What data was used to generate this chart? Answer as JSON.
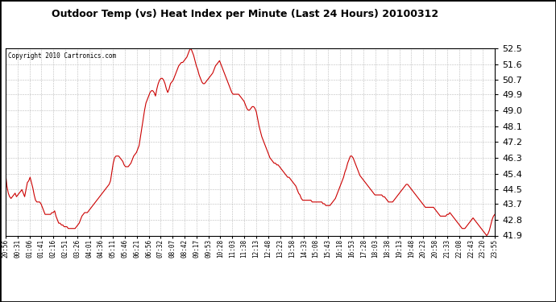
{
  "title": "Outdoor Temp (vs) Heat Index per Minute (Last 24 Hours) 20100312",
  "copyright": "Copyright 2010 Cartronics.com",
  "line_color": "#cc0000",
  "background_color": "#ffffff",
  "grid_color": "#bbbbbb",
  "yticks": [
    41.9,
    42.8,
    43.7,
    44.5,
    45.4,
    46.3,
    47.2,
    48.1,
    49.0,
    49.9,
    50.7,
    51.6,
    52.5
  ],
  "ylim": [
    41.9,
    52.5
  ],
  "xtick_labels": [
    "20:56",
    "00:31",
    "01:06",
    "01:41",
    "02:16",
    "02:51",
    "03:26",
    "04:01",
    "04:36",
    "05:11",
    "05:46",
    "06:21",
    "06:56",
    "07:32",
    "08:07",
    "08:42",
    "09:17",
    "09:53",
    "10:28",
    "11:03",
    "11:38",
    "12:13",
    "12:48",
    "13:23",
    "13:58",
    "14:33",
    "15:08",
    "15:43",
    "16:18",
    "16:53",
    "17:28",
    "18:03",
    "18:38",
    "19:13",
    "19:48",
    "20:23",
    "20:58",
    "21:33",
    "22:08",
    "22:43",
    "23:20",
    "23:55"
  ],
  "data_y": [
    45.4,
    44.7,
    44.3,
    44.1,
    44.0,
    44.1,
    44.2,
    44.3,
    44.1,
    44.2,
    44.3,
    44.4,
    44.5,
    44.3,
    44.1,
    44.5,
    44.9,
    45.0,
    45.2,
    44.9,
    44.6,
    44.2,
    43.9,
    43.8,
    43.8,
    43.8,
    43.7,
    43.5,
    43.3,
    43.1,
    43.1,
    43.1,
    43.1,
    43.1,
    43.2,
    43.2,
    43.3,
    43.0,
    42.8,
    42.6,
    42.6,
    42.5,
    42.5,
    42.4,
    42.4,
    42.4,
    42.3,
    42.3,
    42.3,
    42.3,
    42.3,
    42.3,
    42.4,
    42.5,
    42.6,
    42.8,
    43.0,
    43.1,
    43.2,
    43.2,
    43.2,
    43.3,
    43.4,
    43.5,
    43.6,
    43.7,
    43.8,
    43.9,
    44.0,
    44.1,
    44.2,
    44.3,
    44.4,
    44.5,
    44.6,
    44.7,
    44.8,
    45.0,
    45.5,
    46.0,
    46.3,
    46.4,
    46.4,
    46.4,
    46.3,
    46.2,
    46.1,
    45.9,
    45.8,
    45.8,
    45.8,
    45.9,
    46.0,
    46.2,
    46.4,
    46.5,
    46.6,
    46.8,
    47.0,
    47.5,
    48.0,
    48.5,
    49.0,
    49.4,
    49.6,
    49.8,
    50.0,
    50.1,
    50.1,
    50.0,
    49.8,
    50.2,
    50.5,
    50.7,
    50.8,
    50.8,
    50.7,
    50.5,
    50.2,
    50.0,
    50.2,
    50.5,
    50.6,
    50.7,
    50.9,
    51.1,
    51.3,
    51.5,
    51.6,
    51.7,
    51.7,
    51.8,
    51.9,
    52.0,
    52.2,
    52.4,
    52.5,
    52.3,
    52.1,
    51.8,
    51.5,
    51.3,
    51.0,
    50.8,
    50.6,
    50.5,
    50.5,
    50.6,
    50.7,
    50.8,
    50.9,
    51.0,
    51.1,
    51.3,
    51.5,
    51.6,
    51.7,
    51.8,
    51.6,
    51.4,
    51.2,
    51.0,
    50.8,
    50.6,
    50.4,
    50.2,
    50.0,
    49.9,
    49.9,
    49.9,
    49.9,
    49.9,
    49.8,
    49.7,
    49.6,
    49.5,
    49.3,
    49.1,
    49.0,
    49.0,
    49.1,
    49.2,
    49.2,
    49.1,
    48.9,
    48.5,
    48.1,
    47.8,
    47.5,
    47.3,
    47.1,
    46.9,
    46.7,
    46.5,
    46.3,
    46.2,
    46.1,
    46.0,
    46.0,
    45.9,
    45.9,
    45.8,
    45.7,
    45.6,
    45.5,
    45.4,
    45.3,
    45.2,
    45.2,
    45.1,
    45.0,
    44.9,
    44.8,
    44.7,
    44.5,
    44.3,
    44.2,
    44.0,
    43.9,
    43.9,
    43.9,
    43.9,
    43.9,
    43.9,
    43.9,
    43.8,
    43.8,
    43.8,
    43.8,
    43.8,
    43.8,
    43.8,
    43.8,
    43.7,
    43.7,
    43.6,
    43.6,
    43.6,
    43.6,
    43.7,
    43.8,
    43.9,
    44.0,
    44.2,
    44.4,
    44.6,
    44.8,
    45.0,
    45.2,
    45.5,
    45.7,
    46.0,
    46.2,
    46.4,
    46.4,
    46.3,
    46.1,
    45.9,
    45.7,
    45.5,
    45.3,
    45.2,
    45.1,
    45.0,
    44.9,
    44.8,
    44.7,
    44.6,
    44.5,
    44.4,
    44.3,
    44.2,
    44.2,
    44.2,
    44.2,
    44.2,
    44.2,
    44.1,
    44.1,
    44.0,
    43.9,
    43.8,
    43.8,
    43.8,
    43.8,
    43.9,
    44.0,
    44.1,
    44.2,
    44.3,
    44.4,
    44.5,
    44.6,
    44.7,
    44.8,
    44.8,
    44.7,
    44.6,
    44.5,
    44.4,
    44.3,
    44.2,
    44.1,
    44.0,
    43.9,
    43.8,
    43.7,
    43.6,
    43.5,
    43.5,
    43.5,
    43.5,
    43.5,
    43.5,
    43.5,
    43.4,
    43.3,
    43.2,
    43.1,
    43.0,
    43.0,
    43.0,
    43.0,
    43.0,
    43.1,
    43.1,
    43.2,
    43.1,
    43.0,
    42.9,
    42.8,
    42.7,
    42.6,
    42.5,
    42.4,
    42.3,
    42.3,
    42.3,
    42.4,
    42.5,
    42.6,
    42.7,
    42.8,
    42.9,
    42.8,
    42.7,
    42.6,
    42.5,
    42.4,
    42.3,
    42.2,
    42.1,
    42.0,
    41.9,
    42.0,
    42.2,
    42.5,
    42.8,
    43.0,
    43.1
  ]
}
